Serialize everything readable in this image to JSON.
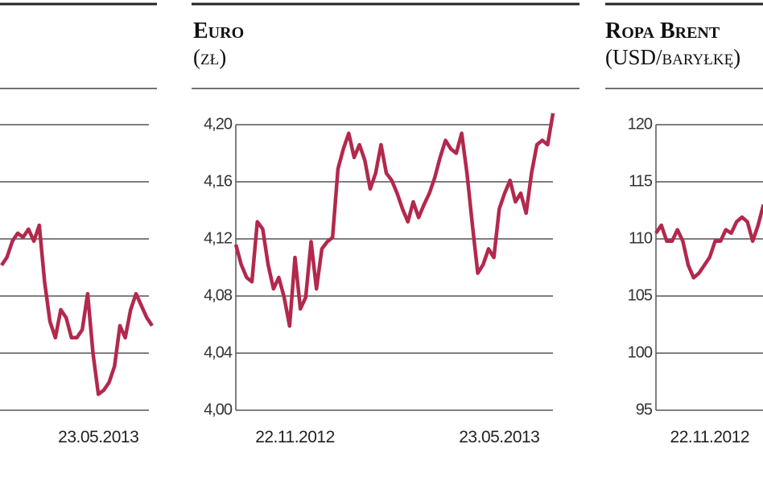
{
  "chart_data": [
    {
      "type": "line",
      "color": "#b3284c",
      "ytick_labels": false,
      "ylim": [
        0,
        5
      ],
      "yticks": [
        0,
        1,
        2,
        3,
        4,
        5
      ],
      "categories": [
        null,
        null,
        null,
        null,
        null,
        null,
        null,
        null,
        null,
        null,
        null,
        null,
        null,
        null,
        null,
        null,
        null,
        null,
        "23.05.2013",
        null,
        null,
        null,
        null,
        null,
        null,
        null,
        null,
        null,
        null
      ],
      "values": [
        2.54,
        2.68,
        2.96,
        3.1,
        3.03,
        3.17,
        2.96,
        3.24,
        2.25,
        1.55,
        1.27,
        1.76,
        1.62,
        1.27,
        1.27,
        1.41,
        2.04,
        0.99,
        0.28,
        0.35,
        0.49,
        0.77,
        1.48,
        1.27,
        1.76,
        2.04,
        1.83,
        1.62,
        1.48
      ]
    },
    {
      "type": "line",
      "title": "Euro",
      "subtitle": "(zł)",
      "color": "#b3284c",
      "ytick_labels": true,
      "ylim": [
        4.0,
        4.2
      ],
      "yticks": [
        {
          "value": 4.0,
          "label": "4,00"
        },
        {
          "value": 4.04,
          "label": "4,04"
        },
        {
          "value": 4.08,
          "label": "4,08"
        },
        {
          "value": 4.12,
          "label": "4,12"
        },
        {
          "value": 4.16,
          "label": "4,16"
        },
        {
          "value": 4.2,
          "label": "4,20"
        }
      ],
      "categories": [
        null,
        null,
        null,
        null,
        null,
        null,
        null,
        null,
        null,
        null,
        null,
        "22.11.2012",
        null,
        null,
        null,
        null,
        null,
        null,
        null,
        null,
        null,
        null,
        null,
        null,
        null,
        null,
        null,
        null,
        null,
        null,
        null,
        null,
        null,
        null,
        null,
        null,
        null,
        null,
        null,
        null,
        null,
        null,
        null,
        null,
        null,
        null,
        null,
        null,
        null,
        "23.05.2013",
        null,
        null,
        null,
        null,
        null,
        null,
        null,
        null,
        null,
        null
      ],
      "values": [
        4.116,
        4.102,
        4.093,
        4.09,
        4.132,
        4.127,
        4.102,
        4.085,
        4.093,
        4.079,
        4.059,
        4.107,
        4.071,
        4.079,
        4.118,
        4.085,
        4.113,
        4.118,
        4.121,
        4.169,
        4.183,
        4.194,
        4.177,
        4.186,
        4.175,
        4.155,
        4.166,
        4.186,
        4.166,
        4.161,
        4.152,
        4.141,
        4.132,
        4.146,
        4.135,
        4.144,
        4.152,
        4.163,
        4.177,
        4.189,
        4.183,
        4.18,
        4.194,
        4.166,
        4.13,
        4.096,
        4.102,
        4.113,
        4.107,
        4.141,
        4.152,
        4.161,
        4.146,
        4.152,
        4.138,
        4.166,
        4.186,
        4.189,
        4.186,
        4.208
      ]
    },
    {
      "type": "line",
      "title": "Ropa Brent",
      "subtitle": "(USD/baryłkę)",
      "color": "#b3284c",
      "ytick_labels": true,
      "ylim": [
        95,
        120
      ],
      "yticks": [
        95,
        100,
        105,
        110,
        115,
        120
      ],
      "categories": [
        null,
        null,
        null,
        null,
        null,
        null,
        null,
        null,
        null,
        null,
        "22.11.2012",
        null,
        null,
        null,
        null,
        null,
        null,
        null,
        null,
        null,
        null
      ],
      "values": [
        110.5,
        111.2,
        109.8,
        109.8,
        110.8,
        109.8,
        107.7,
        106.6,
        107.0,
        107.7,
        108.4,
        109.8,
        109.8,
        110.8,
        110.5,
        111.5,
        111.9,
        111.5,
        109.8,
        111.2,
        113.0
      ]
    }
  ]
}
